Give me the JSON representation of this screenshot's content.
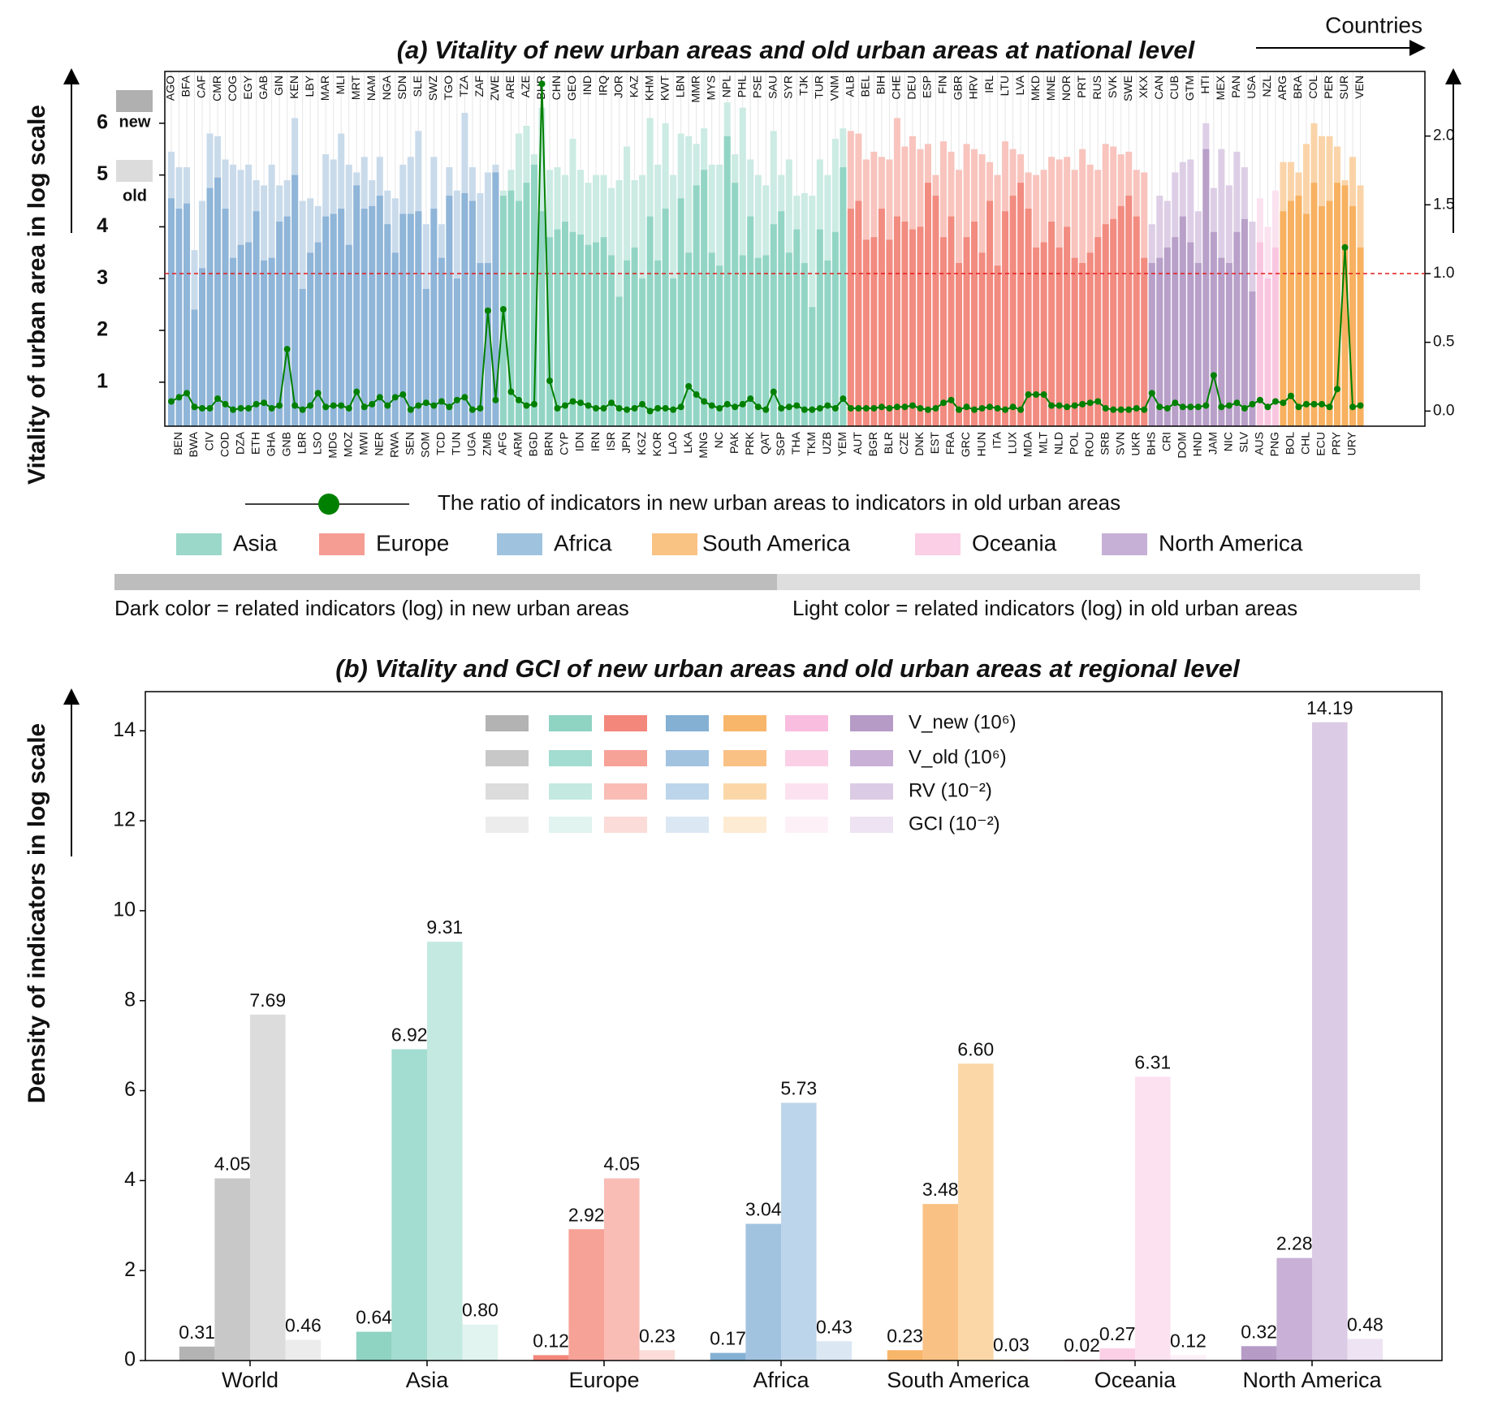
{
  "chart_data": [
    {
      "type": "bar_line",
      "title": "(a) Vitality of new urban areas and old urban areas at national level",
      "x_label": "Countries",
      "y_label": "Vitality of urban area in log scale",
      "ylim": [
        0.15,
        7.0
      ],
      "yticks": [
        1,
        2,
        3,
        4,
        5,
        6
      ],
      "y2lim": [
        -0.11,
        2.47
      ],
      "y2ticks": [
        {
          "value": 0,
          "label": "0.0"
        },
        0.5,
        {
          "value": 1,
          "label": "1.0"
        },
        1.5,
        {
          "value": 2,
          "label": "2.0"
        }
      ],
      "hline": {
        "value": 1.0,
        "axis": "y2",
        "color": "#e41a1c"
      },
      "bar_labels": [
        "new",
        "old"
      ],
      "line_label": "The ratio of indicators in new urban areas to indicators in old urban areas",
      "line_color": "#008000",
      "region_legend": [
        {
          "name": "Asia",
          "color": "#9bd8c9"
        },
        {
          "name": "Europe",
          "color": "#f59c93"
        },
        {
          "name": "Africa",
          "color": "#9fc3df"
        },
        {
          "name": "South America",
          "color": "#f9c383"
        },
        {
          "name": "Oceania",
          "color": "#fbcfe6"
        },
        {
          "name": "North America",
          "color": "#c6b0d6"
        }
      ],
      "notes": [
        "Dark color = related indicators (log) in new urban areas",
        "Light color = related indicators (log) in old urban areas"
      ],
      "groups": [
        {
          "color_new": "#8fb5d8",
          "color_old": "#c9dbeb",
          "countries": [
            "AGO",
            "BEN",
            "BFA",
            "BWA",
            "CAF",
            "CIV",
            "CMR",
            "COD",
            "COG",
            "DZA",
            "EGY",
            "ETH",
            "GAB",
            "GHA",
            "GIN",
            "GNB",
            "KEN",
            "LBR",
            "LBY",
            "LSO",
            "MAR",
            "MDG",
            "MLI",
            "MOZ",
            "MRT",
            "MWI",
            "NAM",
            "NER",
            "NGA",
            "RWA",
            "SDN",
            "SEN",
            "SLE",
            "SOM",
            "SWZ",
            "TCD",
            "TGO",
            "TUN",
            "TZA",
            "UGA",
            "ZAF",
            "ZMB",
            "ZWE"
          ],
          "new": [
            4.55,
            4.35,
            4.45,
            2.4,
            3.2,
            4.75,
            4.95,
            4.35,
            3.4,
            3.65,
            3.7,
            4.3,
            3.35,
            3.4,
            4.1,
            4.2,
            5.0,
            2.8,
            3.5,
            3.7,
            4.2,
            4.25,
            4.35,
            3.65,
            4.8,
            4.35,
            4.4,
            4.6,
            4.05,
            3.5,
            4.25,
            4.25,
            4.3,
            2.8,
            4.35,
            3.4,
            4.6,
            3.0,
            4.65,
            4.5,
            3.3,
            3.3,
            5.05
          ],
          "old": [
            5.45,
            5.15,
            5.15,
            3.55,
            4.5,
            5.8,
            5.75,
            5.3,
            5.2,
            5.1,
            5.2,
            4.9,
            4.8,
            5.2,
            4.8,
            4.9,
            6.1,
            4.5,
            4.55,
            4.4,
            5.4,
            5.3,
            5.8,
            5.2,
            5.05,
            5.35,
            4.9,
            5.35,
            4.7,
            4.55,
            5.2,
            5.35,
            5.85,
            4.05,
            5.35,
            4.05,
            5.15,
            4.7,
            6.2,
            5.15,
            4.65,
            5.05,
            5.2
          ],
          "ratio": [
            0.07,
            0.1,
            0.13,
            0.03,
            0.02,
            0.02,
            0.09,
            0.05,
            0.01,
            0.02,
            0.02,
            0.05,
            0.06,
            0.02,
            0.04,
            0.45,
            0.04,
            0.01,
            0.04,
            0.13,
            0.03,
            0.04,
            0.04,
            0.02,
            0.14,
            0.03,
            0.05,
            0.1,
            0.04,
            0.1,
            0.12,
            0.01,
            0.04,
            0.06,
            0.04,
            0.07,
            0.03,
            0.08,
            0.1,
            0.01,
            0.02,
            0.73,
            0.08
          ]
        },
        {
          "color_new": "#93d5c5",
          "color_old": "#cbebe3",
          "countries": [
            "AFG",
            "ARE",
            "ARM",
            "AZE",
            "BGD",
            "BHR",
            "BRN",
            "CHN",
            "CYP",
            "GEO",
            "IDN",
            "IND",
            "IRN",
            "IRQ",
            "ISR",
            "JOR",
            "JPN",
            "KAZ",
            "KGZ",
            "KHM",
            "KOR",
            "KWT",
            "LAO",
            "LBN",
            "LKA",
            "MMR",
            "MNG",
            "MYS",
            "NC",
            "NPL",
            "PAK",
            "PHL",
            "PRK",
            "PSE",
            "QAT",
            "SAU",
            "SGP",
            "SYR",
            "THA",
            "TJK",
            "TKM",
            "TUR",
            "UZB",
            "VNM",
            "YEM"
          ],
          "new": [
            4.6,
            4.7,
            4.5,
            4.85,
            5.2,
            4.3,
            3.8,
            3.95,
            4.1,
            3.9,
            3.85,
            3.65,
            3.7,
            3.8,
            3.45,
            2.65,
            3.35,
            3.6,
            3.0,
            4.2,
            3.35,
            4.35,
            3.0,
            4.55,
            3.5,
            4.8,
            5.1,
            3.5,
            3.25,
            5.75,
            4.85,
            3.45,
            4.2,
            3.4,
            3.45,
            4.05,
            4.3,
            3.5,
            3.95,
            3.3,
            2.45,
            3.95,
            3.35,
            3.9,
            5.15
          ],
          "old": [
            4.7,
            5.1,
            5.8,
            5.95,
            5.4,
            6.3,
            5.1,
            5.15,
            5.0,
            5.7,
            5.1,
            4.85,
            5.0,
            5.0,
            4.75,
            4.9,
            5.55,
            4.9,
            5.0,
            6.1,
            5.2,
            6.0,
            5.0,
            5.8,
            5.75,
            5.6,
            5.9,
            5.2,
            5.2,
            6.4,
            5.4,
            6.3,
            5.3,
            5.0,
            4.8,
            5.85,
            5.0,
            5.3,
            4.6,
            4.65,
            4.6,
            5.3,
            5.0,
            5.7,
            5.9
          ],
          "ratio": [
            0.74,
            0.14,
            0.08,
            0.04,
            0.05,
            2.38,
            0.22,
            0.02,
            0.04,
            0.07,
            0.06,
            0.04,
            0.02,
            0.02,
            0.06,
            0.02,
            0.01,
            0.02,
            0.05,
            0.0,
            0.02,
            0.02,
            0.01,
            0.03,
            0.18,
            0.12,
            0.07,
            0.04,
            0.02,
            0.05,
            0.03,
            0.05,
            0.09,
            0.03,
            0.01,
            0.14,
            0.02,
            0.03,
            0.04,
            0.01,
            0.01,
            0.02,
            0.04,
            0.02,
            0.09
          ]
        },
        {
          "color_new": "#f28b80",
          "color_old": "#f8c4bd",
          "countries": [
            "ALB",
            "AUT",
            "BEL",
            "BGR",
            "BIH",
            "BLR",
            "CHE",
            "CZE",
            "DEU",
            "DNK",
            "ESP",
            "EST",
            "FIN",
            "FRA",
            "GBR",
            "GRC",
            "HRV",
            "HUN",
            "IRL",
            "ITA",
            "LTU",
            "LUX",
            "LVA",
            "MDA",
            "MKD",
            "MLT",
            "MNE",
            "NLD",
            "NOR",
            "POL",
            "PRT",
            "ROU",
            "RUS",
            "SRB",
            "SVK",
            "SVN",
            "SWE",
            "UKR",
            "XKX"
          ],
          "new": [
            4.35,
            4.5,
            3.75,
            3.8,
            4.35,
            3.75,
            4.2,
            4.1,
            3.95,
            4.0,
            4.85,
            4.6,
            3.8,
            4.2,
            3.3,
            3.8,
            4.1,
            3.5,
            4.5,
            3.25,
            4.3,
            4.6,
            4.85,
            4.35,
            3.6,
            3.7,
            4.1,
            3.6,
            4.0,
            3.4,
            3.3,
            3.5,
            3.8,
            4.05,
            4.15,
            4.4,
            4.6,
            4.2,
            3.4
          ],
          "old": [
            5.85,
            5.8,
            5.3,
            5.45,
            5.35,
            5.3,
            6.1,
            5.55,
            5.75,
            5.5,
            5.6,
            5.0,
            5.65,
            5.45,
            5.1,
            5.6,
            5.5,
            5.4,
            5.25,
            5.0,
            5.65,
            5.5,
            5.4,
            5.05,
            5.0,
            5.1,
            5.35,
            5.3,
            5.35,
            5.1,
            5.5,
            5.2,
            5.1,
            5.6,
            5.55,
            5.4,
            5.45,
            5.1,
            5.05
          ],
          "ratio": [
            0.02,
            0.02,
            0.02,
            0.02,
            0.03,
            0.02,
            0.03,
            0.03,
            0.04,
            0.02,
            0.01,
            0.02,
            0.06,
            0.08,
            0.01,
            0.03,
            0.01,
            0.02,
            0.03,
            0.02,
            0.01,
            0.03,
            0.01,
            0.12,
            0.12,
            0.12,
            0.04,
            0.04,
            0.03,
            0.04,
            0.05,
            0.06,
            0.07,
            0.02,
            0.01,
            0.01,
            0.01,
            0.02,
            0.01
          ]
        },
        {
          "color_new": "#b8a0c9",
          "color_old": "#ddcee6",
          "countries": [
            "BHS",
            "CAN",
            "CRI",
            "CUB",
            "DOM",
            "GTM",
            "HND",
            "HTI",
            "JAM",
            "MEX",
            "NIC",
            "PAN",
            "SLV",
            "USA"
          ],
          "new": [
            3.3,
            3.4,
            3.6,
            3.8,
            4.2,
            3.7,
            3.3,
            5.5,
            3.9,
            3.4,
            3.3,
            3.9,
            4.15,
            2.75
          ],
          "old": [
            4.05,
            4.6,
            4.5,
            5.05,
            5.25,
            5.3,
            4.3,
            6.0,
            4.75,
            5.5,
            4.8,
            5.45,
            5.15,
            4.1
          ],
          "ratio": [
            0.13,
            0.03,
            0.02,
            0.06,
            0.03,
            0.03,
            0.03,
            0.04,
            0.26,
            0.03,
            0.04,
            0.06,
            0.02,
            0.05
          ]
        },
        {
          "color_new": "#f9c6e0",
          "color_old": "#fbe2ef",
          "countries": [
            "AUS",
            "NZL",
            "PNG"
          ],
          "new": [
            3.7,
            3.0,
            3.6
          ],
          "old": [
            4.55,
            4.0,
            4.7
          ],
          "ratio": [
            0.08,
            0.03,
            0.07
          ]
        },
        {
          "color_new": "#f7b160",
          "color_old": "#fad4a8",
          "countries": [
            "ARG",
            "BOL",
            "BRA",
            "CHL",
            "COL",
            "ECU",
            "PER",
            "PRY",
            "SUR",
            "URY",
            "VEN"
          ],
          "new": [
            4.3,
            4.5,
            4.6,
            4.25,
            4.85,
            4.4,
            4.5,
            4.85,
            4.8,
            4.4,
            3.6
          ],
          "old": [
            5.25,
            5.25,
            5.05,
            5.6,
            6.0,
            5.75,
            5.75,
            5.55,
            4.9,
            5.35,
            4.8
          ],
          "ratio": [
            0.06,
            0.11,
            0.03,
            0.05,
            0.05,
            0.05,
            0.03,
            0.16,
            1.19,
            0.03,
            0.04
          ]
        }
      ]
    },
    {
      "type": "grouped_bar",
      "title": "(b) Vitality and GCI of new urban areas and old urban areas at regional level",
      "y_label": "Density of indicators in log scale",
      "categories": [
        "World",
        "Asia",
        "Europe",
        "Africa",
        "South America",
        "Oceania",
        "North America"
      ],
      "ylim": [
        0,
        14.87
      ],
      "yticks": [
        0,
        2,
        4,
        6,
        8,
        10,
        12,
        14
      ],
      "series": [
        {
          "name": "V_new (10⁶)",
          "colors": [
            "#b3b3b3",
            "#8fd3c3",
            "#f3877c",
            "#84b0d4",
            "#f8b66a",
            "#f9bde0",
            "#b69bc7"
          ],
          "values": [
            0.31,
            0.64,
            0.12,
            0.17,
            0.23,
            0.02,
            0.32
          ],
          "value_labels": [
            "0.31",
            "0.64",
            "0.12",
            "0.17",
            "0.23",
            "0.02",
            "0.32"
          ]
        },
        {
          "name": "V_old (10⁶)",
          "colors": [
            "#c8c8c8",
            "#a3dcd0",
            "#f7a297",
            "#a2c3e0",
            "#fac185",
            "#fbd0e7",
            "#c8b0d6"
          ],
          "values": [
            4.05,
            6.92,
            2.92,
            3.04,
            3.48,
            0.27,
            2.28
          ],
          "value_labels": [
            "4.05",
            "6.92",
            "2.92",
            "3.04",
            "3.48",
            "0.27",
            "2.28"
          ]
        },
        {
          "name": "RV (10⁻²)",
          "colors": [
            "#dcdcdc",
            "#c4e9e0",
            "#f9bdb6",
            "#bdd5ea",
            "#fbd7a8",
            "#fce2f0",
            "#dccbe5"
          ],
          "values": [
            7.69,
            9.31,
            4.05,
            5.73,
            6.6,
            6.31,
            14.19
          ],
          "value_labels": [
            "7.69",
            "9.31",
            "4.05",
            "5.73",
            "6.60",
            "6.31",
            "14.19"
          ]
        },
        {
          "name": "GCI (10⁻²)",
          "colors": [
            "#ececec",
            "#e1f4ef",
            "#fbdcd8",
            "#dbe8f3",
            "#fdebd3",
            "#fdf0f7",
            "#ede3f2"
          ],
          "values": [
            0.46,
            0.8,
            0.23,
            0.43,
            0.03,
            0.12,
            0.48
          ],
          "value_labels": [
            "0.46",
            "0.80",
            "0.23",
            "0.43",
            "0.03",
            "0.12",
            "0.48"
          ]
        }
      ]
    }
  ]
}
